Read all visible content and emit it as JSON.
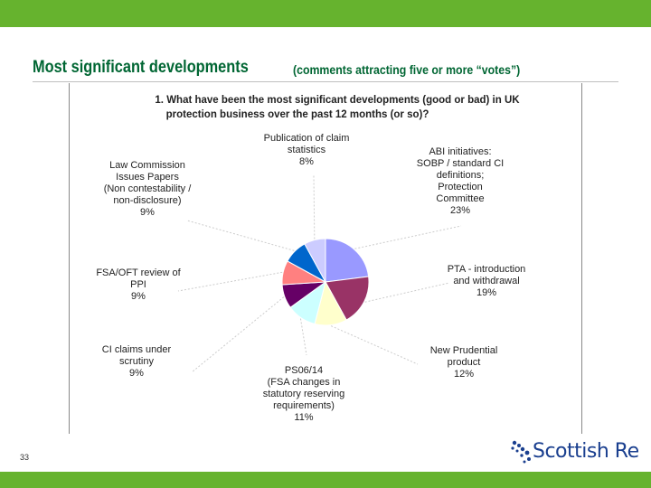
{
  "slide": {
    "title": "Most significant developments",
    "subtitle": "(comments attracting five or more “votes”)",
    "slide_number": "33",
    "logo_text": "Scottish Re",
    "band_color": "#66b32e",
    "title_color": "#006633",
    "logo_color": "#1a3f8f"
  },
  "chart_data": {
    "type": "pie",
    "title_lines": [
      "1. What have been the most significant developments (good or bad) in UK",
      "protection business over the past 12 months (or so)?"
    ],
    "slices": [
      {
        "label_lines": [
          "ABI initiatives:",
          "SOBP / standard CI",
          "definitions;",
          "Protection",
          "Committee"
        ],
        "value": 23,
        "value_label": "23%",
        "color": "#9999ff"
      },
      {
        "label_lines": [
          "PTA - introduction",
          "and withdrawal"
        ],
        "value": 19,
        "value_label": "19%",
        "color": "#993366"
      },
      {
        "label_lines": [
          "New Prudential",
          "product"
        ],
        "value": 12,
        "value_label": "12%",
        "color": "#ffffcc"
      },
      {
        "label_lines": [
          "PS06/14",
          "(FSA changes in",
          "statutory reserving",
          "requirements)"
        ],
        "value": 11,
        "value_label": "11%",
        "color": "#ccffff"
      },
      {
        "label_lines": [
          "CI claims under",
          "scrutiny"
        ],
        "value": 9,
        "value_label": "9%",
        "color": "#660066"
      },
      {
        "label_lines": [
          "FSA/OFT review of",
          "PPI"
        ],
        "value": 9,
        "value_label": "9%",
        "color": "#ff8080"
      },
      {
        "label_lines": [
          "Law Commission",
          "Issues Papers",
          "(Non contestability /",
          "non-disclosure)"
        ],
        "value": 9,
        "value_label": "9%",
        "color": "#0066cc"
      },
      {
        "label_lines": [
          "Publication of claim",
          "statistics"
        ],
        "value": 8,
        "value_label": "8%",
        "color": "#ccccff"
      }
    ]
  }
}
